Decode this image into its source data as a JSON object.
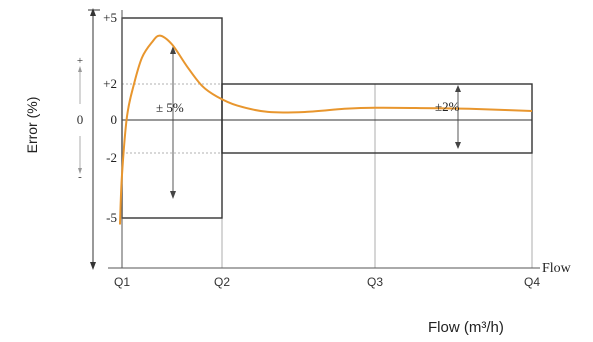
{
  "chart_data": {
    "type": "line",
    "title": "",
    "xlabel": "Flow (m³/h)",
    "ylabel": "Error (%)",
    "x_axis_end_label": "Flow",
    "x_ticks": [
      "Q1",
      "Q2",
      "Q3",
      "Q4"
    ],
    "y_ticks": [
      "+5",
      "+2",
      "0",
      "-2",
      "-5"
    ],
    "y_side_signs": {
      "plus": "+",
      "zero": "0",
      "minus": "-"
    },
    "ylim": [
      -6,
      5
    ],
    "zones": [
      {
        "from": "Q1",
        "to": "Q2",
        "upper": 5,
        "lower": -5,
        "label": "±5%"
      },
      {
        "from": "Q2",
        "to": "Q4",
        "upper": 2,
        "lower": -2,
        "label": "±2%"
      }
    ],
    "tolerance_labels": {
      "low_zone": "5%",
      "high_zone": "2%",
      "pm": "±"
    },
    "curve": {
      "color": "#E8962E",
      "x_scale_note": "x in units where Q1=1, Q2=2, Q3=3, Q4=4",
      "points": [
        [
          0.98,
          -5.3
        ],
        [
          1.0,
          -3.0
        ],
        [
          1.05,
          0.2
        ],
        [
          1.12,
          2.0
        ],
        [
          1.2,
          3.2
        ],
        [
          1.3,
          3.9
        ],
        [
          1.38,
          4.2
        ],
        [
          1.5,
          3.8
        ],
        [
          1.65,
          2.8
        ],
        [
          1.8,
          1.9
        ],
        [
          1.95,
          1.3
        ],
        [
          2.1,
          0.8
        ],
        [
          2.3,
          0.45
        ],
        [
          2.55,
          0.45
        ],
        [
          2.8,
          0.62
        ],
        [
          3.0,
          0.68
        ],
        [
          3.3,
          0.66
        ],
        [
          3.6,
          0.62
        ],
        [
          3.85,
          0.55
        ],
        [
          4.0,
          0.5
        ]
      ]
    },
    "colors": {
      "frame": "#333333",
      "axis": "#555555",
      "grid": "#999999",
      "curve": "#E8962E"
    }
  }
}
